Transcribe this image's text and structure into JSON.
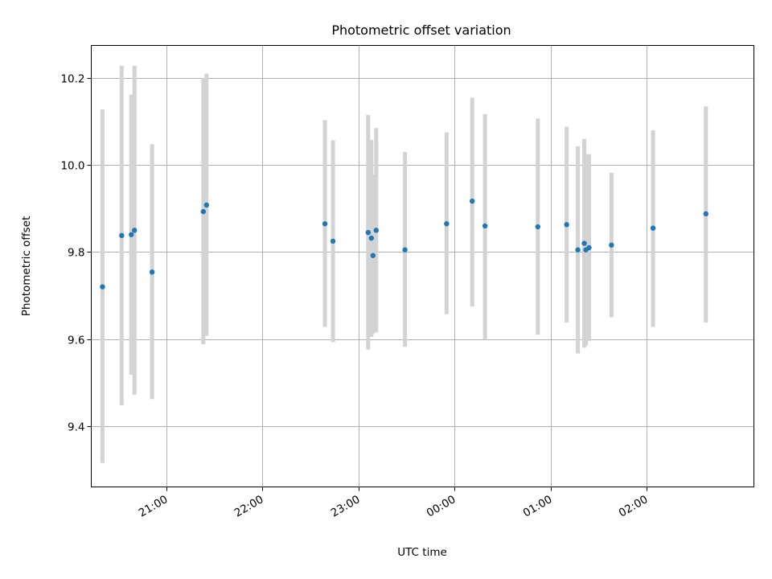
{
  "chart_data": {
    "type": "scatter",
    "title": "Photometric offset variation",
    "xlabel": "UTC time",
    "ylabel": "Photometric offset",
    "grid": true,
    "colors": {
      "points": "#1f77b4",
      "errorbars": "#d3d3d3",
      "grid": "#b0b0b0"
    },
    "x_ticks": [
      {
        "label": "21:00",
        "hours": 21
      },
      {
        "label": "22:00",
        "hours": 22
      },
      {
        "label": "23:00",
        "hours": 23
      },
      {
        "label": "00:00",
        "hours": 24
      },
      {
        "label": "01:00",
        "hours": 25
      },
      {
        "label": "02:00",
        "hours": 26
      }
    ],
    "y_ticks": [
      9.4,
      9.6,
      9.8,
      10.0,
      10.2
    ],
    "xlim": [
      "20:13",
      "03:07"
    ],
    "ylim": [
      9.26,
      10.275
    ],
    "series": [
      {
        "points": [
          {
            "x": "20:20",
            "y": 9.72,
            "lo": 9.315,
            "hi": 10.128
          },
          {
            "x": "20:32",
            "y": 9.838,
            "lo": 9.448,
            "hi": 10.228
          },
          {
            "x": "20:38",
            "y": 9.84,
            "lo": 9.518,
            "hi": 10.162
          },
          {
            "x": "20:40",
            "y": 9.85,
            "lo": 9.472,
            "hi": 10.228
          },
          {
            "x": "20:51",
            "y": 9.754,
            "lo": 9.462,
            "hi": 10.048
          },
          {
            "x": "21:23",
            "y": 9.893,
            "lo": 9.588,
            "hi": 10.2
          },
          {
            "x": "21:25",
            "y": 9.908,
            "lo": 9.607,
            "hi": 10.21
          },
          {
            "x": "22:39",
            "y": 9.865,
            "lo": 9.628,
            "hi": 10.103
          },
          {
            "x": "22:44",
            "y": 9.825,
            "lo": 9.593,
            "hi": 10.057
          },
          {
            "x": "23:06",
            "y": 9.845,
            "lo": 9.576,
            "hi": 10.115
          },
          {
            "x": "23:08",
            "y": 9.832,
            "lo": 9.605,
            "hi": 10.058
          },
          {
            "x": "23:09",
            "y": 9.792,
            "lo": 9.612,
            "hi": 9.978
          },
          {
            "x": "23:11",
            "y": 9.85,
            "lo": 9.615,
            "hi": 10.085
          },
          {
            "x": "23:29",
            "y": 9.805,
            "lo": 9.582,
            "hi": 10.03
          },
          {
            "x": "23:55",
            "y": 9.865,
            "lo": 9.657,
            "hi": 10.075
          },
          {
            "x": "00:11",
            "y": 9.917,
            "lo": 9.675,
            "hi": 10.155
          },
          {
            "x": "00:19",
            "y": 9.86,
            "lo": 9.598,
            "hi": 10.117
          },
          {
            "x": "00:52",
            "y": 9.858,
            "lo": 9.61,
            "hi": 10.107
          },
          {
            "x": "01:10",
            "y": 9.863,
            "lo": 9.638,
            "hi": 10.088
          },
          {
            "x": "01:17",
            "y": 9.805,
            "lo": 9.567,
            "hi": 10.043
          },
          {
            "x": "01:21",
            "y": 9.82,
            "lo": 9.58,
            "hi": 10.06
          },
          {
            "x": "01:22",
            "y": 9.805,
            "lo": 9.585,
            "hi": 10.025
          },
          {
            "x": "01:24",
            "y": 9.81,
            "lo": 9.595,
            "hi": 10.025
          },
          {
            "x": "01:38",
            "y": 9.816,
            "lo": 9.65,
            "hi": 9.982
          },
          {
            "x": "02:04",
            "y": 9.855,
            "lo": 9.628,
            "hi": 10.08
          },
          {
            "x": "02:37",
            "y": 9.888,
            "lo": 9.638,
            "hi": 10.135
          }
        ]
      }
    ]
  }
}
